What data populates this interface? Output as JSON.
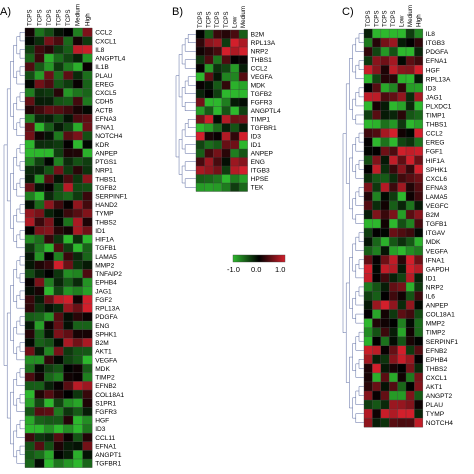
{
  "chart_data": [
    {
      "type": "heatmap",
      "panel": "A)",
      "columns": [
        "TCPS",
        "TCPS",
        "TCPS",
        "TCPS",
        "TCPS",
        "Medium",
        "High"
      ],
      "rows": [
        "CCL2",
        "CXCL1",
        "IL8",
        "ANGPTL4",
        "IL1B",
        "PLAU",
        "EREG",
        "CXCL5",
        "CDH5",
        "ACTB",
        "EFNA3",
        "IFNA1",
        "NOTCH4",
        "KDR",
        "ANPEP",
        "PTGS1",
        "NRP1",
        "THBS1",
        "TGFB2",
        "SERPINF1",
        "HAND2",
        "TYMP",
        "THBS2",
        "ID1",
        "HIF1A",
        "TGFB1",
        "LAMA5",
        "MMP2",
        "TNFAIP2",
        "EPHB4",
        "JAG1",
        "FGF2",
        "RPL13A",
        "PDGFA",
        "ENG",
        "SPHK1",
        "B2M",
        "AKT1",
        "VEGFA",
        "MDK",
        "TIMP2",
        "EFNB2",
        "COL18A1",
        "S1PR1",
        "FGFR3",
        "HGF",
        "ID3",
        "CCL11",
        "EFNA1",
        "ANGPT1",
        "TGFBR1"
      ]
    },
    {
      "type": "heatmap",
      "panel": "B)",
      "columns": [
        "TCPS",
        "TCPS",
        "TCPS",
        "TCPS",
        "Low",
        "Medium"
      ],
      "rows": [
        "B2M",
        "RPL13A",
        "NRP2",
        "THBS1",
        "CCL2",
        "VEGFA",
        "MDK",
        "TGFB2",
        "FGFR3",
        "ANGPTL4",
        "TIMP1",
        "TGFBR1",
        "ID3",
        "ID1",
        "ANPEP",
        "ENG",
        "ITGB3",
        "HPSE",
        "TEK"
      ]
    },
    {
      "type": "heatmap",
      "panel": "C)",
      "columns": [
        "TCPS",
        "TCPS",
        "TCPS",
        "TCPS",
        "Low",
        "Medium",
        "High"
      ],
      "rows": [
        "IL8",
        "ITGB3",
        "PDGFA",
        "EFNA1",
        "HGF",
        "RPL13A",
        "ID3",
        "JAG1",
        "PLXDC1",
        "TIMP1",
        "THBS1",
        "CCL2",
        "EREG",
        "FGF1",
        "HIF1A",
        "SPHK1",
        "CXCL6",
        "EFNA3",
        "LAMA5",
        "VEGFC",
        "B2M",
        "TGFB1",
        "ITGAV",
        "MDK",
        "VEGFA",
        "IFNA1",
        "GAPDH",
        "ID1",
        "NRP2",
        "IL6",
        "ANPEP",
        "COL18A1",
        "MMP2",
        "TIMP2",
        "SERPINF1",
        "EFNB2",
        "EPHB4",
        "THBS2",
        "CXCL1",
        "AKT1",
        "ANGPT2",
        "PLAU",
        "TYMP",
        "NOTCH4"
      ]
    }
  ],
  "color_scale": {
    "ticks": [
      "-1.0",
      "0.0",
      "1.0"
    ],
    "low_color": "#2db82d",
    "mid_color": "#000000",
    "high_color": "#d21f2b"
  },
  "labels": {
    "panel_a": "A)",
    "panel_b": "B)",
    "panel_c": "C)"
  }
}
